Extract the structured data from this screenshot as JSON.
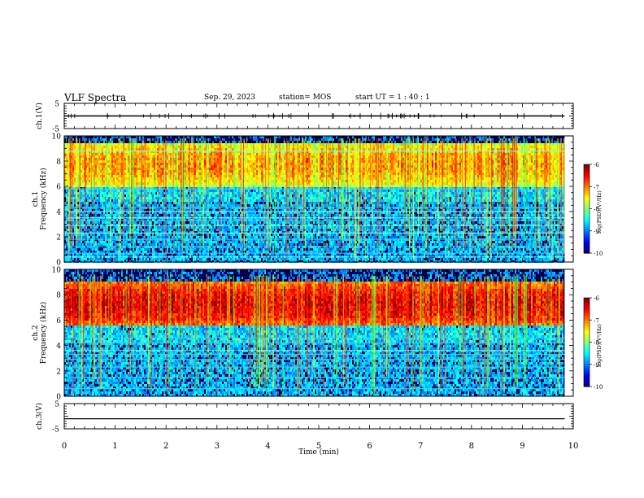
{
  "header": {
    "title": "VLF Spectra",
    "date": "Sep. 29, 2023",
    "station": "station= MOS",
    "start_ut": "start  UT =   1 : 40 : 1"
  },
  "chart_data": [
    {
      "type": "line",
      "name": "ch1-waveform",
      "ylabel": "ch.1(V)",
      "ylim": [
        -5,
        5
      ],
      "yticks": [
        "5",
        "-5"
      ],
      "x": [
        0,
        9.83
      ],
      "y": [
        0,
        0
      ]
    },
    {
      "type": "heatmap",
      "name": "ch1-spectrogram",
      "ylabel": "ch.1\nFrequency (kHz)",
      "ylim": [
        0,
        10
      ],
      "yticks": [
        "0",
        "2",
        "4",
        "6",
        "8",
        "10"
      ],
      "xlim": [
        0,
        10
      ],
      "data_end_min": 9.83,
      "colorbar": {
        "label": "log(PSD)(V²/Hz)",
        "range": [
          -10,
          -6
        ],
        "ticks": [
          "-6",
          "-7",
          "-8",
          "-9",
          "-10"
        ]
      },
      "dominant_band_khz": [
        6,
        9.5
      ],
      "noise_lines_khz": [
        0.4,
        0.7,
        1.2,
        1.8,
        2.3,
        2.9,
        3.3,
        3.5,
        4.0,
        4.3,
        5.8,
        8.8
      ]
    },
    {
      "type": "heatmap",
      "name": "ch2-spectrogram",
      "ylabel": "ch.2\nFrequency (kHz)",
      "ylim": [
        0,
        10
      ],
      "yticks": [
        "0",
        "2",
        "4",
        "6",
        "8",
        "10"
      ],
      "xlim": [
        0,
        10
      ],
      "data_end_min": 9.83,
      "colorbar": {
        "label": "log(PSD)(V²/Hz)",
        "range": [
          -10,
          -6
        ],
        "ticks": [
          "-6",
          "-7",
          "-8",
          "-9",
          "-10"
        ]
      },
      "dominant_band_khz": [
        5.5,
        9
      ],
      "noise_lines_khz": [
        0.6,
        1.5,
        2.3,
        2.9,
        3.3,
        3.6,
        4.2,
        4.6
      ]
    },
    {
      "type": "line",
      "name": "ch3-waveform",
      "ylabel": "ch.3(V)",
      "ylim": [
        -5,
        5
      ],
      "yticks": [
        "5",
        "-5"
      ],
      "x": [
        0,
        9.83
      ],
      "y": [
        -1,
        -1
      ]
    }
  ],
  "xaxis": {
    "label": "Time (min)",
    "ticks": [
      "0",
      "1",
      "2",
      "3",
      "4",
      "5",
      "6",
      "7",
      "8",
      "9",
      "10"
    ],
    "range": [
      0,
      10
    ]
  },
  "colors": {
    "jet": [
      "#000080",
      "#0000ff",
      "#00ffff",
      "#00ff00",
      "#ffff00",
      "#ff0000",
      "#ffffff"
    ]
  }
}
